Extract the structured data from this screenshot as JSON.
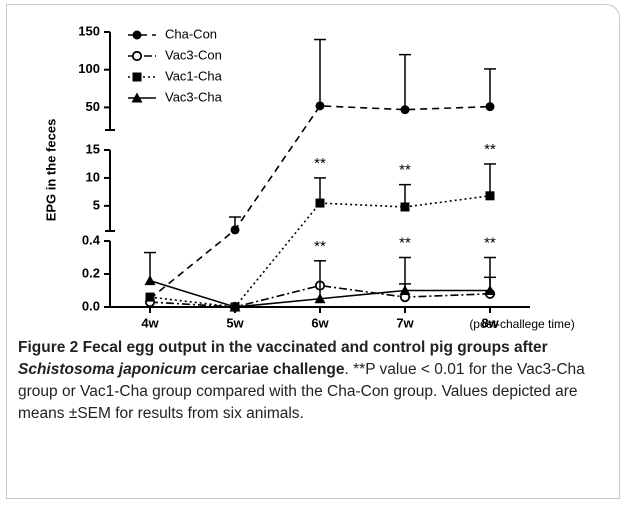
{
  "chart_data": {
    "type": "line",
    "ylabel": "EPG in the feces",
    "xlabel": "(post-challege time)",
    "categories": [
      "4w",
      "5w",
      "6w",
      "7w",
      "8w"
    ],
    "axes": [
      {
        "ylim": [
          20,
          150
        ],
        "yticks": [
          50,
          100,
          150
        ]
      },
      {
        "ylim": [
          0.5,
          15
        ],
        "yticks": [
          5,
          10,
          15
        ]
      },
      {
        "ylim": [
          0,
          0.4
        ],
        "yticks": [
          {
            "value": 0,
            "label": "0.0"
          },
          0.2,
          0.4
        ]
      }
    ],
    "series": [
      {
        "name": "Cha-Con",
        "color": "#000000",
        "marker": "circle",
        "dash": "7,5",
        "values": [
          0.05,
          0.7,
          52,
          47,
          51
        ],
        "errors": [
          null,
          2.3,
          88,
          73,
          50
        ]
      },
      {
        "name": "Vac3-Con",
        "color": "#000000",
        "marker": "open-circle",
        "dash": "8,3,2,3",
        "values": [
          0.03,
          0.0,
          0.13,
          0.06,
          0.08
        ],
        "errors": [
          null,
          null,
          null,
          0.08,
          0.1
        ]
      },
      {
        "name": "Vac1-Cha",
        "color": "#000000",
        "marker": "square",
        "dash": "2,3",
        "values": [
          0.06,
          0.0,
          5.5,
          4.8,
          6.8
        ],
        "errors": [
          null,
          null,
          4.5,
          4,
          5.7
        ]
      },
      {
        "name": "Vac3-Cha",
        "color": "#000000",
        "marker": "triangle",
        "dash": "none",
        "values": [
          0.16,
          0.0,
          0.05,
          0.1,
          0.1
        ],
        "errors": [
          0.17,
          null,
          0.23,
          0.2,
          0.2
        ]
      }
    ],
    "annotations": [
      {
        "text": "**",
        "series": "Vac1-Cha",
        "category": "6w"
      },
      {
        "text": "**",
        "series": "Vac1-Cha",
        "category": "7w"
      },
      {
        "text": "**",
        "series": "Vac1-Cha",
        "category": "8w"
      },
      {
        "text": "**",
        "series": "Vac3-Cha",
        "category": "6w"
      },
      {
        "text": "**",
        "series": "Vac3-Cha",
        "category": "7w"
      },
      {
        "text": "**",
        "series": "Vac3-Cha",
        "category": "8w"
      }
    ]
  },
  "caption": [
    {
      "text": "Figure 2 Fecal egg output in the vaccinated and control pig groups after ",
      "style": "b"
    },
    {
      "text": "Schistosoma japonicum",
      "style": "bi"
    },
    {
      "text": " cercariae challenge",
      "style": "b"
    },
    {
      "text": ". **P value < 0.01 for the Vac3-Cha group or Vac1-Cha group compared with the Cha-Con group. Values depicted are means ±SEM for results from six animals.",
      "style": "n"
    }
  ]
}
